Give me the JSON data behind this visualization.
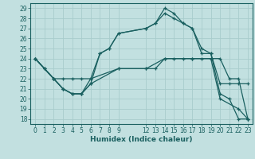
{
  "xlabel": "Humidex (Indice chaleur)",
  "bg_color": "#c2e0e0",
  "grid_color": "#a8cccc",
  "line_color": "#1a6060",
  "xlim": [
    -0.5,
    23.5
  ],
  "ylim": [
    17.5,
    29.5
  ],
  "xticks": [
    0,
    1,
    2,
    3,
    4,
    5,
    6,
    7,
    8,
    9,
    12,
    13,
    14,
    15,
    16,
    17,
    18,
    19,
    20,
    21,
    22,
    23
  ],
  "yticks": [
    18,
    19,
    20,
    21,
    22,
    23,
    24,
    25,
    26,
    27,
    28,
    29
  ],
  "lines": [
    {
      "x": [
        0,
        1,
        2,
        3,
        4,
        5,
        6,
        7,
        8,
        9,
        12,
        13,
        14,
        15,
        16,
        17,
        18,
        19,
        20,
        21,
        22,
        23
      ],
      "y": [
        24,
        23,
        22,
        21,
        20.5,
        20.5,
        22,
        24.5,
        25,
        26.5,
        27,
        27.5,
        29,
        28.5,
        27.5,
        27,
        25,
        24.5,
        20.5,
        20,
        18,
        18
      ]
    },
    {
      "x": [
        0,
        1,
        2,
        3,
        4,
        5,
        6,
        7,
        8,
        9,
        12,
        13,
        14,
        15,
        16,
        17,
        18,
        19,
        20,
        21,
        22,
        23
      ],
      "y": [
        24,
        23,
        22,
        21,
        20.5,
        20.5,
        21.5,
        24.5,
        25,
        26.5,
        27,
        27.5,
        28.5,
        28,
        27.5,
        27,
        24.5,
        24.5,
        21.5,
        21.5,
        21.5,
        21.5
      ]
    },
    {
      "x": [
        0,
        1,
        2,
        3,
        4,
        5,
        6,
        9,
        12,
        13,
        14,
        15,
        16,
        17,
        18,
        19,
        20,
        21,
        22,
        23
      ],
      "y": [
        24,
        23,
        22,
        22,
        22,
        22,
        22,
        23,
        23,
        23,
        24,
        24,
        24,
        24,
        24,
        24,
        24,
        22,
        22,
        18
      ]
    },
    {
      "x": [
        0,
        2,
        3,
        4,
        5,
        6,
        9,
        12,
        14,
        17,
        19,
        20,
        22,
        23
      ],
      "y": [
        24,
        22,
        21,
        20.5,
        20.5,
        21.5,
        23,
        23,
        24,
        24,
        24,
        20,
        19,
        18
      ]
    }
  ]
}
